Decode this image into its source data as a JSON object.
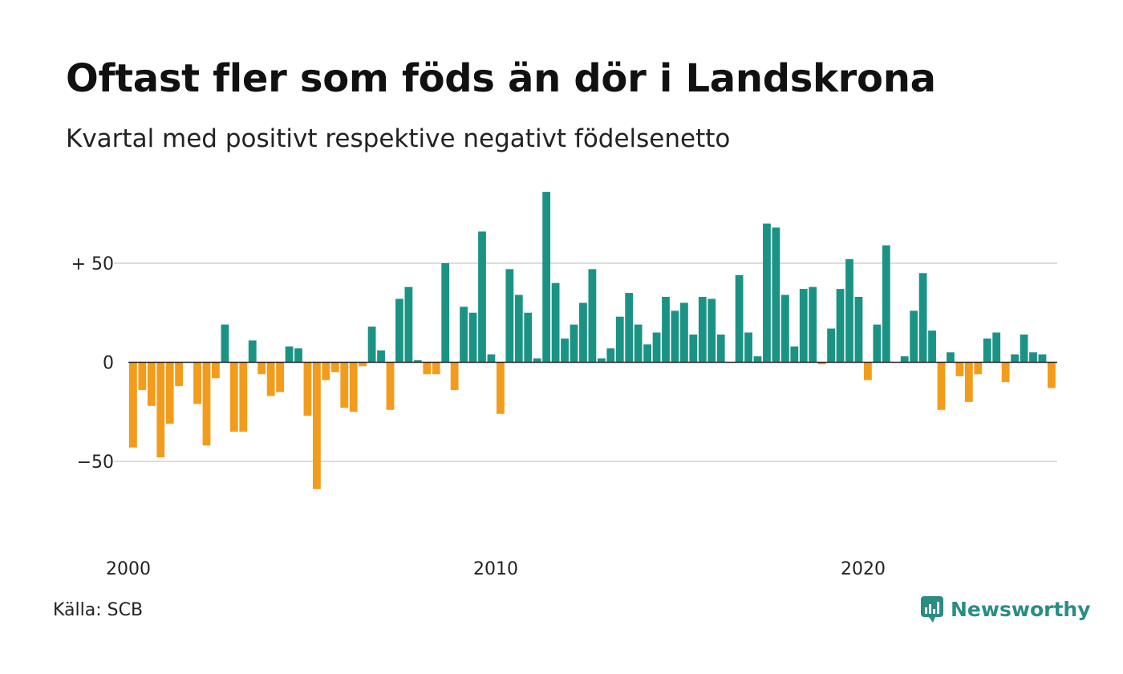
{
  "title": "Oftast fler som föds än dör i Landskrona",
  "subtitle": "Kvartal med positivt respektive negativt födelsenetto",
  "source": "Källa: SCB",
  "brand": {
    "name": "Newsworthy",
    "icon": "newsworthy-logo-icon"
  },
  "colors": {
    "positive": "#1a9385",
    "negative": "#f39c1c",
    "grid": "#dddddd",
    "zero": "#222222"
  },
  "chart_data": {
    "type": "bar",
    "x_start": "2000 Q1",
    "y_ticks": [
      {
        "value": 50,
        "label": "+ 50"
      },
      {
        "value": 0,
        "label": "0"
      },
      {
        "value": -50,
        "label": "−50"
      }
    ],
    "x_ticks": [
      {
        "index": 0,
        "label": "2000"
      },
      {
        "index": 40,
        "label": "2010"
      },
      {
        "index": 80,
        "label": "2020"
      }
    ],
    "ylim": [
      -80,
      90
    ],
    "grid": true,
    "values": [
      -43,
      -14,
      -22,
      -48,
      -31,
      -12,
      0,
      -21,
      -42,
      -8,
      19,
      -35,
      -35,
      11,
      -6,
      -17,
      -15,
      8,
      7,
      -27,
      -64,
      -9,
      -5,
      -23,
      -25,
      -2,
      18,
      6,
      -24,
      32,
      38,
      1,
      -6,
      -6,
      50,
      -14,
      28,
      25,
      66,
      4,
      -26,
      47,
      34,
      25,
      2,
      86,
      40,
      12,
      19,
      30,
      47,
      2,
      7,
      23,
      35,
      19,
      9,
      15,
      33,
      26,
      30,
      14,
      33,
      32,
      14,
      0,
      44,
      15,
      3,
      70,
      68,
      34,
      8,
      37,
      38,
      -1,
      17,
      37,
      52,
      33,
      -9,
      19,
      59,
      0,
      3,
      26,
      45,
      16,
      -24,
      5,
      -7,
      -20,
      -6,
      12,
      15,
      -10,
      4,
      14,
      5,
      4,
      -13
    ]
  }
}
